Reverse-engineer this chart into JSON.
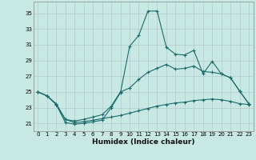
{
  "xlabel": "Humidex (Indice chaleur)",
  "xlim": [
    -0.5,
    23.5
  ],
  "ylim": [
    20.0,
    36.5
  ],
  "xticks": [
    0,
    1,
    2,
    3,
    4,
    5,
    6,
    7,
    8,
    9,
    10,
    11,
    12,
    13,
    14,
    15,
    16,
    17,
    18,
    19,
    20,
    21,
    22,
    23
  ],
  "yticks": [
    21,
    23,
    25,
    27,
    29,
    31,
    33,
    35
  ],
  "bg_color": "#c8e8e4",
  "grid_color": "#b0cccc",
  "line_color": "#1a6b6b",
  "line1_y": [
    25.0,
    24.5,
    23.4,
    21.1,
    20.9,
    21.0,
    21.2,
    21.4,
    23.0,
    24.9,
    30.8,
    32.2,
    35.3,
    35.3,
    30.7,
    29.8,
    29.7,
    30.3,
    27.3,
    28.9,
    27.3,
    26.8,
    25.1,
    23.5
  ],
  "line2_y": [
    25.0,
    24.5,
    23.4,
    21.5,
    21.3,
    21.5,
    21.8,
    22.1,
    23.2,
    25.0,
    25.5,
    26.6,
    27.5,
    28.0,
    28.5,
    27.9,
    28.0,
    28.3,
    27.6,
    27.5,
    27.3,
    26.8,
    25.1,
    23.5
  ],
  "line3_y": [
    25.0,
    24.5,
    23.5,
    21.5,
    21.1,
    21.2,
    21.4,
    21.6,
    21.8,
    22.0,
    22.3,
    22.6,
    22.9,
    23.2,
    23.4,
    23.6,
    23.7,
    23.9,
    24.0,
    24.1,
    24.0,
    23.8,
    23.5,
    23.4
  ],
  "marker": "+",
  "markersize": 3.5,
  "linewidth": 0.8,
  "tick_fontsize": 5.0,
  "xlabel_fontsize": 6.5
}
